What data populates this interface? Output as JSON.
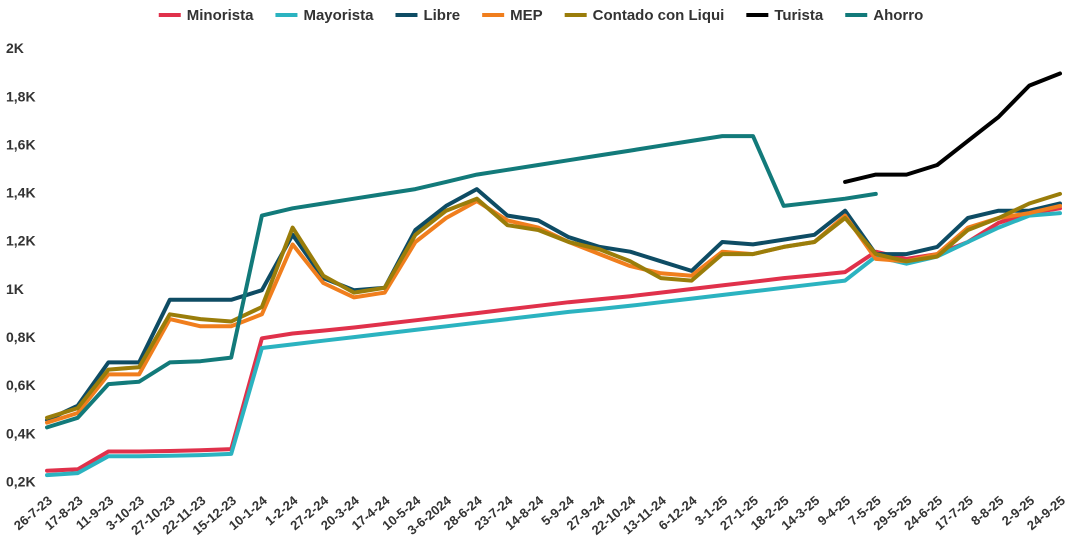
{
  "chart_data": {
    "type": "line",
    "title": "",
    "xlabel": "",
    "ylabel": "",
    "ylim": [
      170,
      2060
    ],
    "grid": false,
    "legend_position": "top",
    "y_ticks": [
      {
        "value": 200,
        "label": "0,2K"
      },
      {
        "value": 400,
        "label": "0,4K"
      },
      {
        "value": 600,
        "label": "0,6K"
      },
      {
        "value": 800,
        "label": "0,8K"
      },
      {
        "value": 1000,
        "label": "1K"
      },
      {
        "value": 1200,
        "label": "1,2K"
      },
      {
        "value": 1400,
        "label": "1,4K"
      },
      {
        "value": 1600,
        "label": "1,6K"
      },
      {
        "value": 1800,
        "label": "1,8K"
      },
      {
        "value": 2000,
        "label": "2K"
      }
    ],
    "x_tick_labels": [
      "26-7-23",
      "17-8-23",
      "11-9-23",
      "3-10-23",
      "27-10-23",
      "22-11-23",
      "15-12-23",
      "10-1-24",
      "1-2-24",
      "27-2-24",
      "20-3-24",
      "17-4-24",
      "10-5-24",
      "3-6-2024",
      "28-6-24",
      "23-7-24",
      "14-8-24",
      "5-9-24",
      "27-9-24",
      "22-10-24",
      "13-11-24",
      "6-12-24",
      "3-1-25",
      "27-1-25",
      "18-2-25",
      "14-3-25",
      "9-4-25",
      "7-5-25",
      "29-5-25",
      "24-6-25",
      "17-7-25",
      "8-8-25",
      "2-9-25",
      "24-9-25"
    ],
    "series": [
      {
        "name": "Minorista",
        "color": "#e0314b",
        "values": [
          250,
          256,
          330,
          330,
          332,
          335,
          340,
          800,
          820,
          832,
          845,
          860,
          875,
          890,
          905,
          920,
          935,
          950,
          962,
          975,
          990,
          1005,
          1020,
          1035,
          1050,
          1062,
          1075,
          1160,
          1130,
          1150,
          1200,
          1280,
          1320,
          1340
        ]
      },
      {
        "name": "Mayorista",
        "color": "#2bb3c0",
        "values": [
          232,
          240,
          310,
          310,
          312,
          315,
          320,
          760,
          775,
          790,
          805,
          820,
          835,
          850,
          865,
          880,
          895,
          910,
          922,
          935,
          950,
          965,
          980,
          995,
          1010,
          1025,
          1040,
          1140,
          1110,
          1140,
          1200,
          1260,
          1310,
          1320
        ]
      },
      {
        "name": "Libre",
        "color": "#0e4c64",
        "values": [
          460,
          520,
          700,
          700,
          960,
          960,
          960,
          1000,
          1230,
          1050,
          1000,
          1010,
          1250,
          1350,
          1420,
          1310,
          1290,
          1220,
          1180,
          1160,
          1120,
          1080,
          1200,
          1190,
          1210,
          1230,
          1330,
          1150,
          1150,
          1180,
          1300,
          1330,
          1330,
          1360
        ]
      },
      {
        "name": "MEP",
        "color": "#f07e1d",
        "values": [
          450,
          490,
          650,
          650,
          880,
          850,
          850,
          900,
          1190,
          1030,
          970,
          990,
          1200,
          1300,
          1370,
          1290,
          1260,
          1200,
          1150,
          1100,
          1070,
          1060,
          1160,
          1150,
          1180,
          1200,
          1310,
          1130,
          1120,
          1150,
          1260,
          1300,
          1320,
          1350
        ]
      },
      {
        "name": "Contado con Liqui",
        "color": "#9a7d0a",
        "values": [
          470,
          510,
          670,
          680,
          900,
          880,
          870,
          930,
          1260,
          1060,
          990,
          1010,
          1230,
          1330,
          1380,
          1270,
          1250,
          1200,
          1170,
          1120,
          1050,
          1040,
          1150,
          1150,
          1180,
          1200,
          1300,
          1150,
          1120,
          1140,
          1250,
          1300,
          1360,
          1400
        ]
      },
      {
        "name": "Turista",
        "color": "#000000",
        "values": [
          null,
          null,
          null,
          null,
          null,
          null,
          null,
          null,
          null,
          null,
          null,
          null,
          null,
          null,
          null,
          null,
          null,
          null,
          null,
          null,
          null,
          null,
          null,
          null,
          null,
          null,
          1450,
          1480,
          1480,
          1520,
          1620,
          1720,
          1850,
          1900
        ]
      },
      {
        "name": "Ahorro",
        "color": "#127a7a",
        "values": [
          430,
          470,
          610,
          620,
          700,
          705,
          720,
          1310,
          1340,
          1360,
          1380,
          1400,
          1420,
          1450,
          1480,
          1500,
          1520,
          1540,
          1560,
          1580,
          1600,
          1620,
          1640,
          1640,
          1350,
          1365,
          1380,
          1400,
          null,
          null,
          null,
          null,
          null,
          null
        ]
      }
    ]
  }
}
